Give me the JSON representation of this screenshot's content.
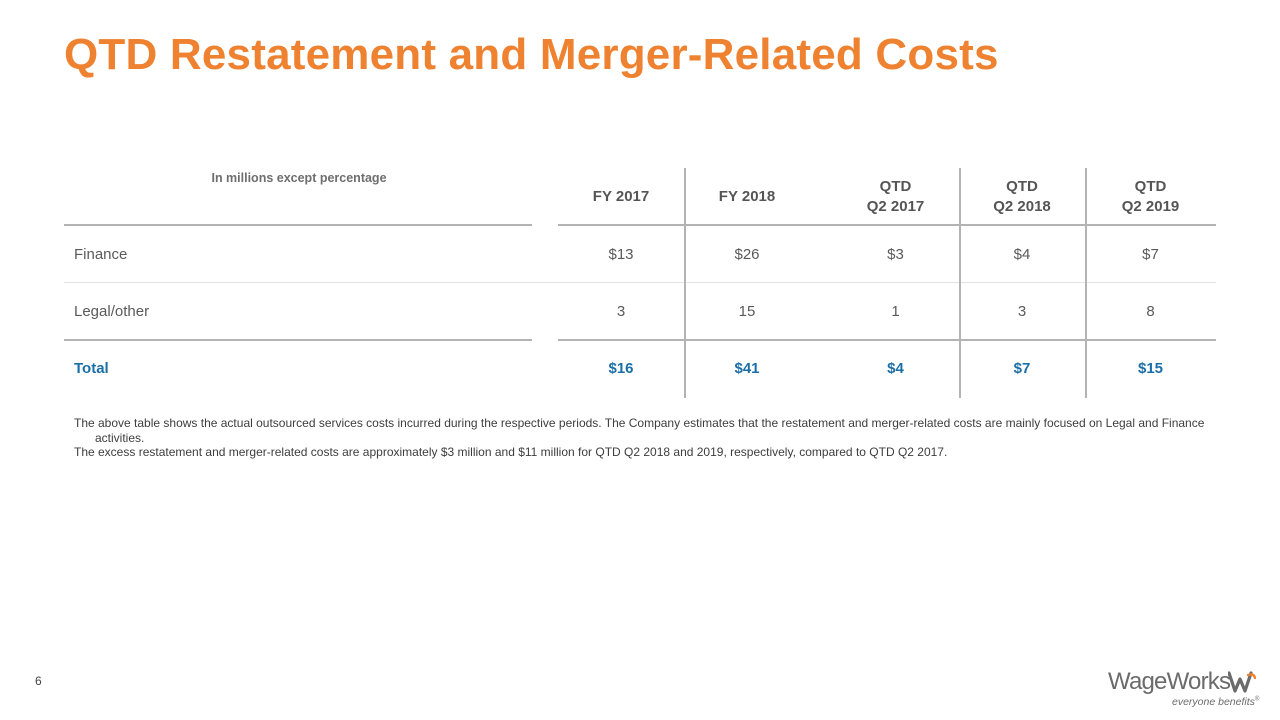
{
  "title": "QTD Restatement and Merger-Related Costs",
  "table": {
    "unit_note": "In millions except percentage",
    "headers": [
      {
        "line1": "FY 2017",
        "line2": ""
      },
      {
        "line1": "FY 2018",
        "line2": ""
      },
      {
        "line1": "QTD",
        "line2": "Q2 2017"
      },
      {
        "line1": "QTD",
        "line2": "Q2 2018"
      },
      {
        "line1": "QTD",
        "line2": "Q2 2019"
      }
    ],
    "rows": [
      {
        "label": "Finance",
        "values": [
          "$13",
          "$26",
          "$3",
          "$4",
          "$7"
        ]
      },
      {
        "label": "Legal/other",
        "values": [
          "3",
          "15",
          "1",
          "3",
          "8"
        ]
      },
      {
        "label": "Total",
        "values": [
          "$16",
          "$41",
          "$4",
          "$7",
          "$15"
        ]
      }
    ]
  },
  "notes": [
    "The above table shows the actual outsourced services costs incurred during the respective periods. The Company estimates that the restatement and merger-related costs are mainly focused on Legal and Finance activities.",
    "The excess restatement and merger-related costs are approximately $3 million and $11 million for QTD Q2 2018 and 2019, respectively, compared to QTD Q2 2017."
  ],
  "page_number": "6",
  "logo": {
    "wordmark": "WageWorks",
    "tagline": "everyone benefits",
    "registered": "®"
  },
  "colors": {
    "title": "#ee8230",
    "total_row": "#1a6fa8",
    "rule": "#b3b3b3"
  }
}
